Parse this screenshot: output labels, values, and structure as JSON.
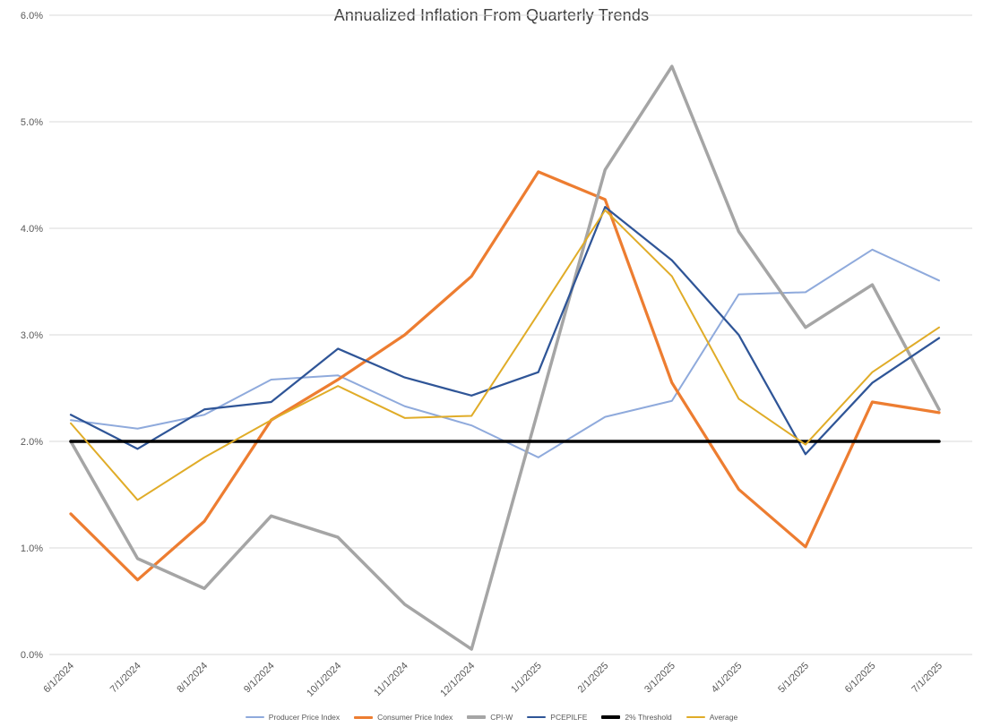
{
  "chart_data": {
    "type": "line",
    "title": "Annualized Inflation From Quarterly Trends",
    "xlabel": "",
    "ylabel": "",
    "ylim": [
      0,
      6
    ],
    "grid": true,
    "legend_position": "bottom",
    "y_ticks": [
      "0.0%",
      "1.0%",
      "2.0%",
      "3.0%",
      "4.0%",
      "5.0%",
      "6.0%"
    ],
    "categories": [
      "6/1/2024",
      "7/1/2024",
      "8/1/2024",
      "9/1/2024",
      "10/1/2024",
      "11/1/2024",
      "12/1/2024",
      "1/1/2025",
      "2/1/2025",
      "3/1/2025",
      "4/1/2025",
      "5/1/2025",
      "6/1/2025",
      "7/1/2025"
    ],
    "colors": {
      "gridline": "#D9D9D9",
      "axis_text": "#595959",
      "title_text": "#404040"
    },
    "series": [
      {
        "name": "Producer Price Index",
        "color": "#8FAADC",
        "width": 2,
        "values": [
          2.2,
          2.12,
          2.25,
          2.58,
          2.62,
          2.33,
          2.15,
          1.85,
          2.23,
          2.38,
          3.38,
          3.4,
          3.8,
          3.51
        ]
      },
      {
        "name": "Consumer Price Index",
        "color": "#ED7D31",
        "width": 3.25,
        "values": [
          1.32,
          0.7,
          1.25,
          2.2,
          2.58,
          3.0,
          3.55,
          4.53,
          4.27,
          2.55,
          1.55,
          1.01,
          2.37,
          2.27
        ]
      },
      {
        "name": "CPI-W",
        "color": "#A5A5A5",
        "width": 3.5,
        "values": [
          2.0,
          0.9,
          0.62,
          1.3,
          1.1,
          0.47,
          0.05,
          2.3,
          4.55,
          5.52,
          3.97,
          3.07,
          3.47,
          2.3
        ]
      },
      {
        "name": "PCEPILFE",
        "color": "#2F5597",
        "width": 2.25,
        "values": [
          2.25,
          1.93,
          2.3,
          2.37,
          2.87,
          2.6,
          2.43,
          2.65,
          4.2,
          3.7,
          3.0,
          1.88,
          2.55,
          2.97
        ]
      },
      {
        "name": "2% Threshold",
        "color": "#000000",
        "width": 3.5,
        "values": [
          2,
          2,
          2,
          2,
          2,
          2,
          2,
          2,
          2,
          2,
          2,
          2,
          2,
          2
        ]
      },
      {
        "name": "Average",
        "color": "#E0AC28",
        "width": 2,
        "values": [
          2.17,
          1.45,
          1.85,
          2.2,
          2.52,
          2.22,
          2.24,
          3.2,
          4.17,
          3.55,
          2.4,
          1.97,
          2.65,
          3.07
        ]
      }
    ]
  }
}
